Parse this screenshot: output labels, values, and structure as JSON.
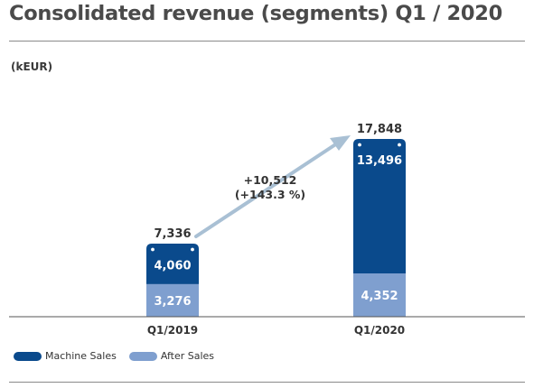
{
  "title": "Consolidated revenue (segments) Q1 / 2020",
  "unit": "(kEUR)",
  "colors": {
    "machine_sales": "#0a4a8c",
    "after_sales": "#7f9fcf",
    "arrow": "#a9c0d4",
    "axis": "#555555",
    "text": "#3a3a3a"
  },
  "chart_data": {
    "type": "bar",
    "stacked": true,
    "categories": [
      "Q1/2019",
      "Q1/2020"
    ],
    "series": [
      {
        "name": "After Sales",
        "values": [
          3276,
          4352
        ],
        "labels": [
          "3,276",
          "4,352"
        ]
      },
      {
        "name": "Machine Sales",
        "values": [
          4060,
          13496
        ],
        "labels": [
          "4,060",
          "13,496"
        ]
      }
    ],
    "totals": [
      7336,
      17848
    ],
    "total_labels": [
      "7,336",
      "17,848"
    ],
    "annotation": {
      "text": [
        "+10,512",
        "(+143.3 %)"
      ]
    },
    "legend_position": "bottom-left",
    "grid": false
  },
  "legend": [
    {
      "label": "Machine Sales",
      "color": "#0a4a8c"
    },
    {
      "label": "After Sales",
      "color": "#7f9fcf"
    }
  ]
}
